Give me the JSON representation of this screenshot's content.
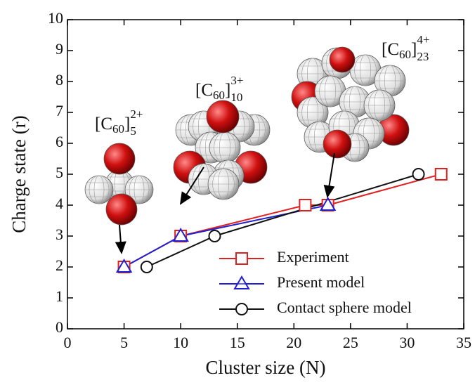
{
  "chart_data": {
    "type": "line",
    "x_label": "Cluster size (N)",
    "y_label": "Charge state (r)",
    "xlim": [
      0,
      35
    ],
    "xticks": [
      0,
      5,
      10,
      15,
      20,
      25,
      30,
      35
    ],
    "ylim": [
      0,
      10
    ],
    "yticks": [
      0,
      1,
      2,
      3,
      4,
      5,
      6,
      7,
      8,
      9,
      10
    ],
    "legend": "lower right",
    "series": [
      {
        "name": "Experiment",
        "color": "#e02020",
        "marker": "square",
        "x": [
          5,
          10,
          21,
          23,
          33
        ],
        "values": [
          2,
          3,
          4,
          4,
          5
        ]
      },
      {
        "name": "Present model",
        "color": "#2020d0",
        "marker": "triangle",
        "x": [
          5,
          10,
          23
        ],
        "values": [
          2,
          3,
          4
        ]
      },
      {
        "name": "Contact sphere model",
        "color": "#111111",
        "marker": "circle",
        "x": [
          7,
          13,
          31
        ],
        "values": [
          2,
          3,
          5
        ]
      }
    ],
    "annotations": [
      {
        "open": "[C",
        "inner": "60",
        "close": "]",
        "sub": "5",
        "sup": "2+"
      },
      {
        "open": "[C",
        "inner": "60",
        "close": "]",
        "sub": "10",
        "sup": "3+"
      },
      {
        "open": "[C",
        "inner": "60",
        "close": "]",
        "sub": "23",
        "sup": "4+"
      }
    ]
  }
}
